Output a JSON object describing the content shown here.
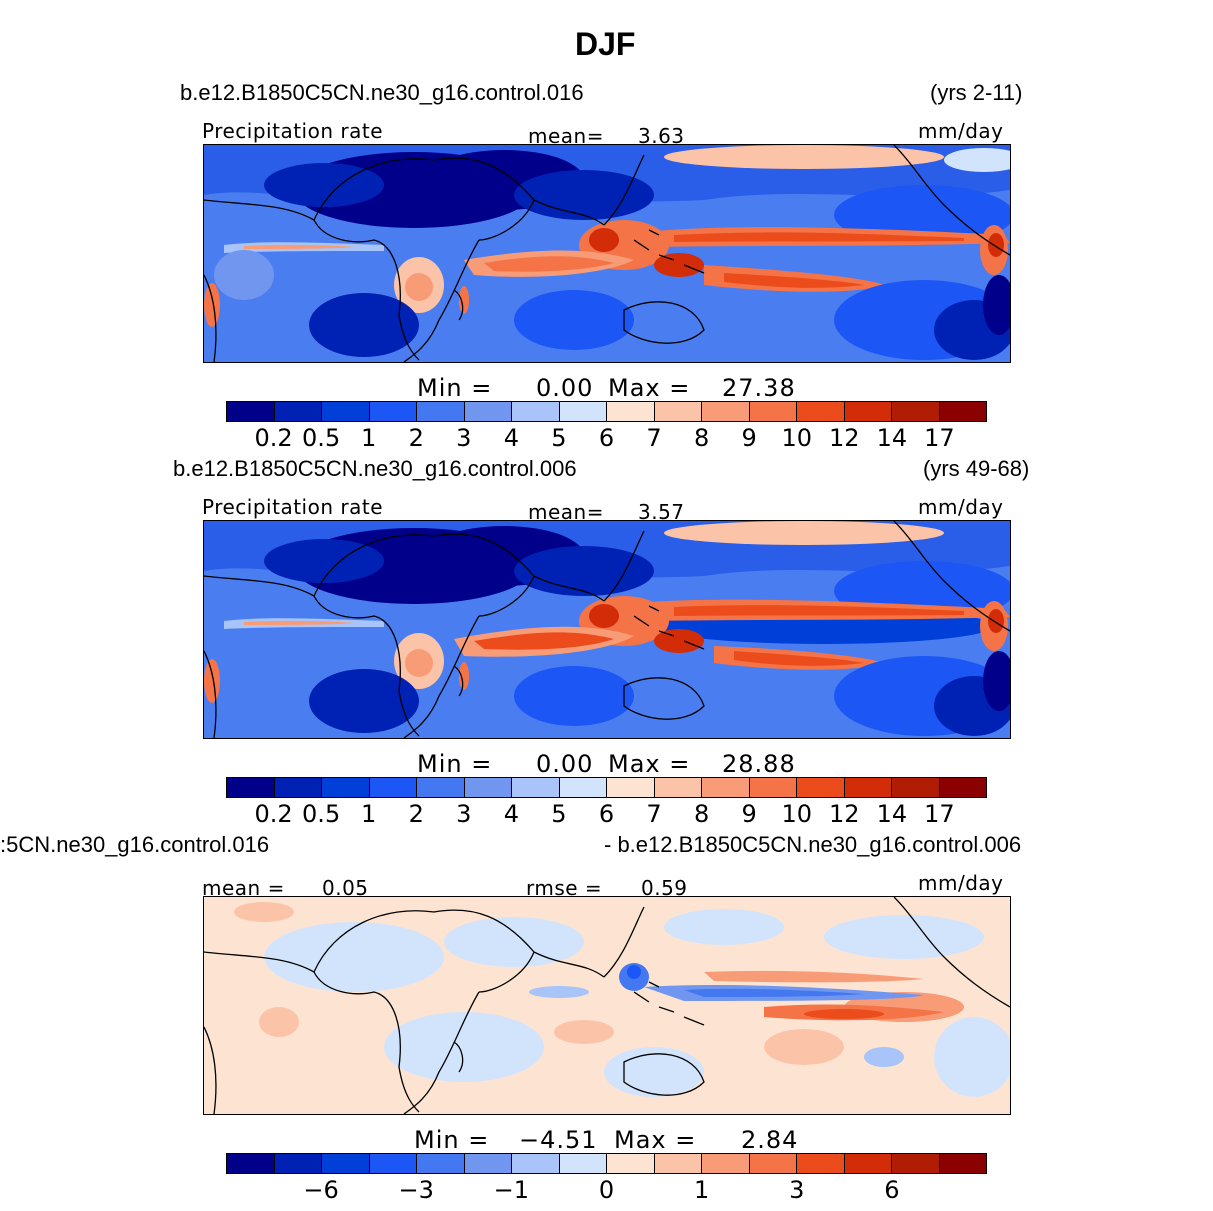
{
  "title": "DJF",
  "colors": [
    "#00008b",
    "#0022b4",
    "#0040d8",
    "#1c56f4",
    "#4478f0",
    "#7096f0",
    "#a8c4f8",
    "#d2e4fc",
    "#fde4d2",
    "#fbc4a8",
    "#f89c78",
    "#f47448",
    "#ec4c1c",
    "#d22c08",
    "#b01c04",
    "#8b0000"
  ],
  "panels": [
    {
      "case": "b.e12.B1850C5CN.ne30_g16.control.016",
      "years": "(yrs 2-11)",
      "var_label": "Precipitation  rate",
      "mean_label": "mean=",
      "mean_value": "3.63",
      "units": "mm/day",
      "min_label": "Min  =",
      "min_value": "0.00",
      "max_label": "Max  =",
      "max_value": "27.38",
      "ticks": [
        "0.2",
        "0.5",
        "1",
        "2",
        "3",
        "4",
        "5",
        "6",
        "7",
        "8",
        "9",
        "10",
        "12",
        "14",
        "17"
      ]
    },
    {
      "case": "b.e12.B1850C5CN.ne30_g16.control.006",
      "years": "(yrs 49-68)",
      "var_label": "Precipitation  rate",
      "mean_label": "mean=",
      "mean_value": "3.57",
      "units": "mm/day",
      "min_label": "Min  =",
      "min_value": "0.00",
      "max_label": "Max  =",
      "max_value": "28.88",
      "ticks": [
        "0.2",
        "0.5",
        "1",
        "2",
        "3",
        "4",
        "5",
        "6",
        "7",
        "8",
        "9",
        "10",
        "12",
        "14",
        "17"
      ]
    },
    {
      "case_left": ":5CN.ne30_g16.control.016",
      "case_right": "- b.e12.B1850C5CN.ne30_g16.control.006",
      "mean_label": "mean  =",
      "mean_value": "0.05",
      "rmse_label": "rmse  =",
      "rmse_value": "0.59",
      "units": "mm/day",
      "min_label": "Min  =",
      "min_value": "−4.51",
      "max_label": "Max  =",
      "max_value": "2.84",
      "ticks": [
        "−6",
        "−3",
        "−1",
        "0",
        "1",
        "3",
        "6"
      ]
    }
  ]
}
